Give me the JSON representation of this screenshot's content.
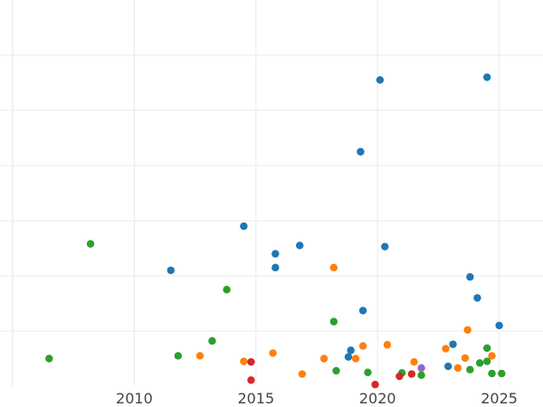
{
  "chart_data": {
    "type": "scatter",
    "title": "",
    "xlabel": "",
    "ylabel": "",
    "xlim": [
      2005.0,
      2026.8
    ],
    "ylim": [
      0,
      70
    ],
    "x_ticks": [
      2010,
      2015,
      2020,
      2025
    ],
    "x_tick_labels": [
      "2010",
      "2015",
      "2020",
      "2025"
    ],
    "y_ticks": [
      10,
      20,
      30,
      40,
      50,
      60
    ],
    "y_tick_labels": [
      "",
      "",
      "",
      "",
      "",
      ""
    ],
    "grid": true,
    "legend": "none",
    "series": [
      {
        "color": "#1f77b4",
        "points": [
          [
            2011.5,
            21
          ],
          [
            2014.5,
            29
          ],
          [
            2015.8,
            24
          ],
          [
            2015.8,
            21.5
          ],
          [
            2016.8,
            25.5
          ],
          [
            2018.8,
            5.3
          ],
          [
            2018.9,
            6.5
          ],
          [
            2019.3,
            42.5
          ],
          [
            2019.4,
            13.7
          ],
          [
            2020.1,
            55.5
          ],
          [
            2020.3,
            25.3
          ],
          [
            2022.9,
            3.6
          ],
          [
            2023.1,
            7.6
          ],
          [
            2023.8,
            19.8
          ],
          [
            2024.1,
            16
          ],
          [
            2024.5,
            56
          ],
          [
            2025.0,
            11
          ]
        ]
      },
      {
        "color": "#ff7f0e",
        "points": [
          [
            2012.7,
            5.5
          ],
          [
            2014.5,
            4.5
          ],
          [
            2015.7,
            6
          ],
          [
            2016.9,
            2.2
          ],
          [
            2017.8,
            5
          ],
          [
            2018.2,
            21.5
          ],
          [
            2019.1,
            5
          ],
          [
            2019.4,
            7.3
          ],
          [
            2020.4,
            7.5
          ],
          [
            2021.5,
            4.4
          ],
          [
            2022.8,
            6.8
          ],
          [
            2023.3,
            3.3
          ],
          [
            2023.6,
            5.1
          ],
          [
            2023.7,
            10.2
          ],
          [
            2024.7,
            5.5
          ]
        ]
      },
      {
        "color": "#2ca02c",
        "points": [
          [
            2006.5,
            5
          ],
          [
            2008.2,
            25.8
          ],
          [
            2011.8,
            5.5
          ],
          [
            2013.2,
            8.2
          ],
          [
            2013.8,
            17.5
          ],
          [
            2018.2,
            11.7
          ],
          [
            2018.3,
            2.8
          ],
          [
            2019.6,
            2.5
          ],
          [
            2021.0,
            2.4
          ],
          [
            2021.8,
            2
          ],
          [
            2023.8,
            3
          ],
          [
            2024.2,
            4.2
          ],
          [
            2024.5,
            4.5
          ],
          [
            2024.5,
            6.9
          ],
          [
            2024.7,
            2.3
          ],
          [
            2025.1,
            2.3
          ]
        ]
      },
      {
        "color": "#d62728",
        "points": [
          [
            2014.8,
            4.4
          ],
          [
            2014.8,
            1.1
          ],
          [
            2019.9,
            0.3
          ],
          [
            2020.9,
            1.8
          ],
          [
            2021.4,
            2.2
          ]
        ]
      },
      {
        "color": "#9467bd",
        "points": [
          [
            2021.8,
            3.3
          ]
        ]
      }
    ]
  }
}
